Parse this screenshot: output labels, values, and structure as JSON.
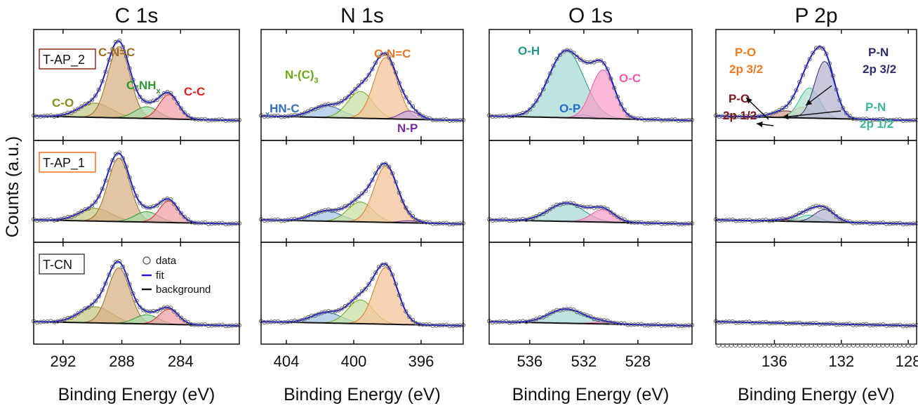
{
  "figure": {
    "ylabel": "Counts (a.u.)",
    "samples": [
      {
        "label": "T-AP_2",
        "color": "#a0302a"
      },
      {
        "label": "T-AP_1",
        "color": "#f07a30"
      },
      {
        "label": "T-CN",
        "color": "#555555"
      }
    ],
    "legend": {
      "data": "data",
      "fit": "fit",
      "background": "background"
    }
  },
  "chart_data": [
    {
      "type": "area",
      "title": "C 1s",
      "xlabel": "Binding Energy (eV)",
      "xlim": [
        294,
        280
      ],
      "ticks": [
        292,
        288,
        284
      ],
      "tick_labels": [
        "292",
        "288",
        "284"
      ],
      "scale": [
        1.0,
        0.97,
        0.85
      ],
      "peaks": [
        {
          "name": "C-O",
          "center": 289.8,
          "height": 0.17,
          "width": 1.1,
          "color": "#c7c98a",
          "label_color": "#8a8a18",
          "labeled_in_row": 0
        },
        {
          "name": "C-N=C",
          "center": 288.2,
          "height": 0.85,
          "width": 0.75,
          "color": "#d8b186",
          "label_color": "#9a6d25",
          "labeled_in_row": 0
        },
        {
          "name": "C-NH",
          "sub": "x",
          "center": 286.3,
          "height": 0.14,
          "width": 0.8,
          "color": "#a7d9a7",
          "label_color": "#2e9a2e",
          "labeled_in_row": 0
        },
        {
          "name": "C-C",
          "center": 284.8,
          "height": 0.29,
          "width": 0.65,
          "color": "#f0a0a8",
          "label_color": "#e02020",
          "labeled_in_row": 0
        }
      ],
      "series_scale": [
        [
          1,
          1,
          1,
          1
        ],
        [
          1,
          1,
          1,
          1
        ],
        [
          1.45,
          1.0,
          1.0,
          0.8
        ]
      ]
    },
    {
      "type": "area",
      "title": "N 1s",
      "xlabel": "Binding Energy (eV)",
      "xlim": [
        405.5,
        393.5
      ],
      "ticks": [
        404,
        400,
        396
      ],
      "tick_labels": [
        "404",
        "400",
        "396"
      ],
      "scale": [
        1.0,
        0.95,
        0.92
      ],
      "peaks": [
        {
          "name": "HN-C",
          "pre": "x",
          "center": 401.6,
          "height": 0.14,
          "width": 0.9,
          "color": "#a4c4e4",
          "label_color": "#2f6fb4",
          "labeled_in_row": 0
        },
        {
          "name": "N-(C)",
          "sub": "3",
          "center": 399.6,
          "height": 0.32,
          "width": 0.75,
          "color": "#c8e0a4",
          "label_color": "#6aa818",
          "labeled_in_row": 0
        },
        {
          "name": "C-N=C",
          "center": 398.1,
          "height": 0.73,
          "width": 0.7,
          "color": "#f5c49a",
          "label_color": "#e0792a",
          "labeled_in_row": 0
        },
        {
          "name": "N-P",
          "center": 396.7,
          "height": 0.1,
          "width": 0.55,
          "color": "#c9a6dc",
          "label_color": "#7a2a9a",
          "labeled_in_row": 0
        }
      ],
      "series_scale": [
        [
          1,
          1,
          1,
          1
        ],
        [
          1,
          0.85,
          1.05,
          0.3
        ],
        [
          1.05,
          1.05,
          1.1,
          0
        ]
      ]
    },
    {
      "type": "area",
      "title": "O 1s",
      "xlabel": "Binding Energy (eV)",
      "xlim": [
        539,
        524
      ],
      "ticks": [
        536,
        532,
        528
      ],
      "tick_labels": [
        "536",
        "532",
        "528"
      ],
      "scale": [
        1.0,
        0.33,
        0.22
      ],
      "peaks": [
        {
          "name": "O-H",
          "center": 533.3,
          "height": 0.8,
          "width": 1.3,
          "color": "#a9d9d4",
          "label_color": "#1f9a8a",
          "labeled_in_row": 0
        },
        {
          "name": "O-P",
          "center": 532.0,
          "height": 0.04,
          "width": 0.5,
          "color": "#9ec0ea",
          "label_color": "#1f6fd0",
          "labeled_in_row": 0
        },
        {
          "name": "O-C",
          "center": 530.6,
          "height": 0.58,
          "width": 0.85,
          "color": "#f5a0c8",
          "label_color": "#f05aa8",
          "labeled_in_row": 0
        }
      ],
      "series_scale": [
        [
          1,
          1,
          1
        ],
        [
          0.9,
          0.5,
          0.85
        ],
        [
          1.05,
          0,
          0.2
        ]
      ]
    },
    {
      "type": "area",
      "title": "P 2p",
      "xlabel": "Binding Energy (eV)",
      "xlim": [
        139.5,
        127.5
      ],
      "ticks": [
        136,
        132,
        128
      ],
      "tick_labels": [
        "136",
        "132",
        "128"
      ],
      "scale": [
        1.0,
        0.24,
        0.0
      ],
      "peaks": [
        {
          "name": "P-O",
          "line2": "2p 1/2",
          "center": 135.3,
          "height": 0.08,
          "width": 0.8,
          "color": "#d4a2a2",
          "label_color": "#7a1a1a",
          "labeled_in_row": 0
        },
        {
          "name": "P-O",
          "line2": "2p 3/2",
          "center": 134.3,
          "height": 0.13,
          "width": 0.6,
          "color": "#f6c49e",
          "label_color": "#f07a20",
          "labeled_in_row": 0
        },
        {
          "name": "P-N",
          "line2": "2p 1/2",
          "center": 133.9,
          "height": 0.36,
          "width": 0.6,
          "color": "#b2e2d2",
          "label_color": "#3ab895",
          "labeled_in_row": 0
        },
        {
          "name": "P-N",
          "line2": "2p 3/2",
          "center": 133.0,
          "height": 0.68,
          "width": 0.6,
          "color": "#b6b4d0",
          "label_color": "#2e2e6e",
          "labeled_in_row": 0
        }
      ],
      "series_scale": [
        [
          1,
          1,
          1,
          1
        ],
        [
          1,
          1,
          1,
          1
        ],
        [
          0,
          0,
          0,
          0
        ]
      ]
    }
  ]
}
